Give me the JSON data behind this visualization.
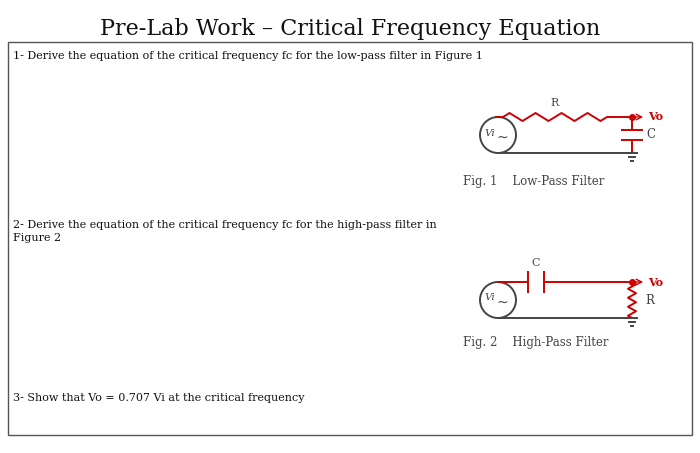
{
  "title": "Pre-Lab Work – Critical Frequency Equation",
  "title_fontsize": 16,
  "title_font": "serif",
  "q1_text": "1- Derive the equation of the critical frequency fc for the low-pass filter in Figure 1",
  "q2_text_line1": "2- Derive the equation of the critical frequency fc for the high-pass filter in",
  "q2_text_line2": "Figure 2",
  "q3_text": "3- Show that Vo = 0.707 Vi at the critical frequency",
  "fig1_caption": "Fig. 1    Low-Pass Filter",
  "fig2_caption": "Fig. 2    High-Pass Filter",
  "bg_color": "#ffffff",
  "box_edge_color": "#555555",
  "circuit_color": "#444444",
  "red_color": "#cc0000",
  "text_color": "#111111",
  "body_fontsize": 8.0,
  "body_font": "serif",
  "caption_fontsize": 8.5
}
